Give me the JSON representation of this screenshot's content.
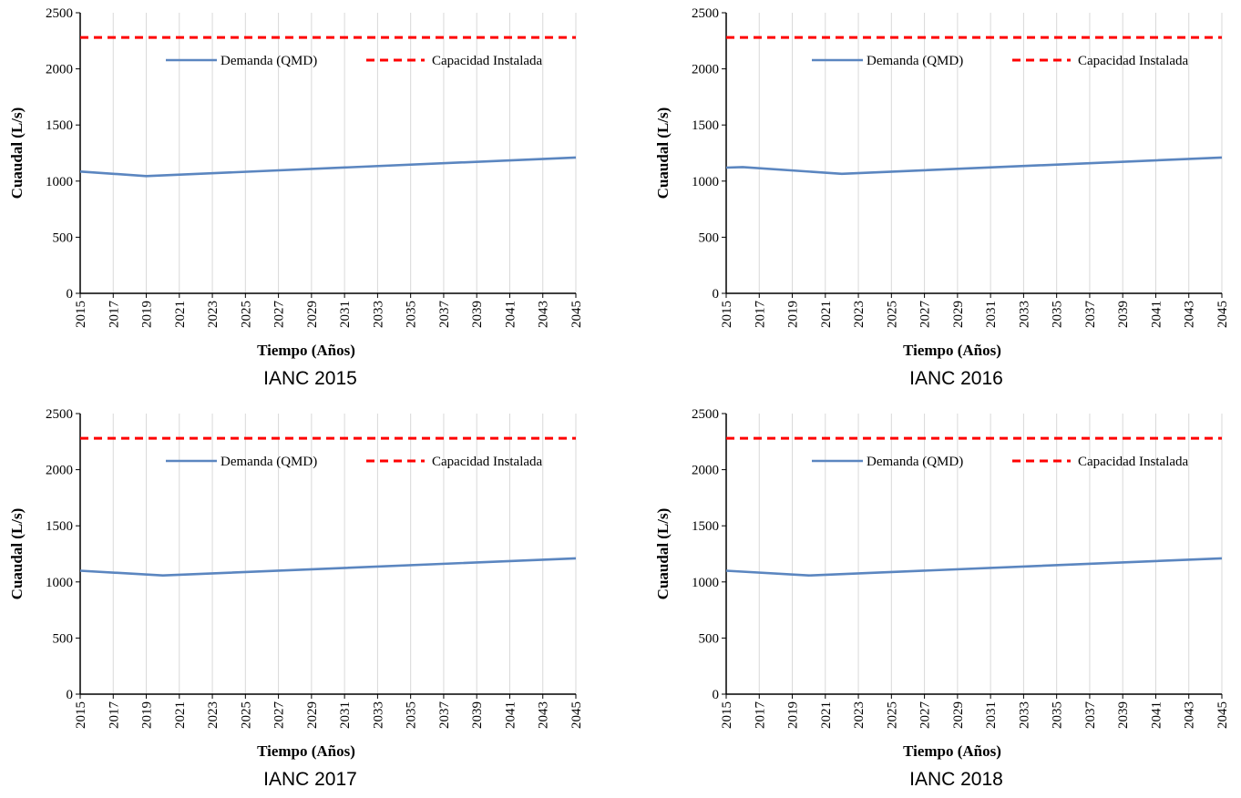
{
  "chart_data": [
    {
      "type": "line",
      "caption": "IANC 2015",
      "xlabel": "Tiempo (Años)",
      "ylabel": "Cuaudal (L/s)",
      "xlim": [
        2015,
        2045
      ],
      "ylim": [
        0,
        2500
      ],
      "x_ticks": [
        "2015",
        "2017",
        "2019",
        "2021",
        "2023",
        "2025",
        "2027",
        "2029",
        "2031",
        "2033",
        "2035",
        "2037",
        "2039",
        "2041",
        "2043",
        "2045"
      ],
      "y_ticks": [
        "0",
        "500",
        "1000",
        "1500",
        "2000",
        "2500"
      ],
      "grid": true,
      "legend_position": "top-right",
      "series": [
        {
          "name": "Demanda (QMD)",
          "style": "solid",
          "color": "#5B86C0",
          "x": [
            2015,
            2019,
            2045
          ],
          "y": [
            1085,
            1045,
            1210
          ]
        },
        {
          "name": "Capacidad Instalada",
          "style": "dashed",
          "color": "#FF0000",
          "x": [
            2015,
            2045
          ],
          "y": [
            2280,
            2280
          ]
        }
      ]
    },
    {
      "type": "line",
      "caption": "IANC 2016",
      "xlabel": "Tiempo (Años)",
      "ylabel": "Cuaudal (L/s)",
      "xlim": [
        2015,
        2045
      ],
      "ylim": [
        0,
        2500
      ],
      "x_ticks": [
        "2015",
        "2017",
        "2019",
        "2021",
        "2023",
        "2025",
        "2027",
        "2029",
        "2031",
        "2033",
        "2035",
        "2037",
        "2039",
        "2041",
        "2043",
        "2045"
      ],
      "y_ticks": [
        "0",
        "500",
        "1000",
        "1500",
        "2000",
        "2500"
      ],
      "grid": true,
      "legend_position": "top-right",
      "series": [
        {
          "name": "Demanda (QMD)",
          "style": "solid",
          "color": "#5B86C0",
          "x": [
            2015,
            2016,
            2022,
            2045
          ],
          "y": [
            1120,
            1125,
            1065,
            1210
          ]
        },
        {
          "name": "Capacidad Instalada",
          "style": "dashed",
          "color": "#FF0000",
          "x": [
            2015,
            2045
          ],
          "y": [
            2280,
            2280
          ]
        }
      ]
    },
    {
      "type": "line",
      "caption": "IANC 2017",
      "xlabel": "Tiempo (Años)",
      "ylabel": "Cuaudal (L/s)",
      "xlim": [
        2015,
        2045
      ],
      "ylim": [
        0,
        2500
      ],
      "x_ticks": [
        "2015",
        "2017",
        "2019",
        "2021",
        "2023",
        "2025",
        "2027",
        "2029",
        "2031",
        "2033",
        "2035",
        "2037",
        "2039",
        "2041",
        "2043",
        "2045"
      ],
      "y_ticks": [
        "0",
        "500",
        "1000",
        "1500",
        "2000",
        "2500"
      ],
      "grid": true,
      "legend_position": "top-right",
      "series": [
        {
          "name": "Demanda (QMD)",
          "style": "solid",
          "color": "#5B86C0",
          "x": [
            2015,
            2020,
            2045
          ],
          "y": [
            1100,
            1058,
            1210
          ]
        },
        {
          "name": "Capacidad Instalada",
          "style": "dashed",
          "color": "#FF0000",
          "x": [
            2015,
            2045
          ],
          "y": [
            2280,
            2280
          ]
        }
      ]
    },
    {
      "type": "line",
      "caption": "IANC 2018",
      "xlabel": "Tiempo (Años)",
      "ylabel": "Cuaudal (L/s)",
      "xlim": [
        2015,
        2045
      ],
      "ylim": [
        0,
        2500
      ],
      "x_ticks": [
        "2015",
        "2017",
        "2019",
        "2021",
        "2023",
        "2025",
        "2027",
        "2029",
        "2031",
        "2033",
        "2035",
        "2037",
        "2039",
        "2041",
        "2043",
        "2045"
      ],
      "y_ticks": [
        "0",
        "500",
        "1000",
        "1500",
        "2000",
        "2500"
      ],
      "grid": true,
      "legend_position": "top-right",
      "series": [
        {
          "name": "Demanda (QMD)",
          "style": "solid",
          "color": "#5B86C0",
          "x": [
            2015,
            2020,
            2045
          ],
          "y": [
            1100,
            1058,
            1210
          ]
        },
        {
          "name": "Capacidad Instalada",
          "style": "dashed",
          "color": "#FF0000",
          "x": [
            2015,
            2045
          ],
          "y": [
            2280,
            2280
          ]
        }
      ]
    }
  ]
}
